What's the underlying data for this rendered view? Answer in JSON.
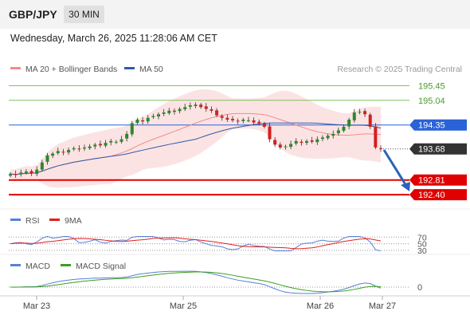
{
  "header": {
    "pair": "GBP/JPY",
    "timeframe": "30 MIN",
    "datetime": "Wednesday, March 26, 2025 11:28:06 AM CET"
  },
  "legend": {
    "ma20_label": "MA 20 + Bollinger Bands",
    "ma50_label": "MA 50",
    "attribution": "Research © 2025 Trading Central",
    "ma20_color": "#f48a8a",
    "ma50_color": "#2f5aa6"
  },
  "rsi_legend": {
    "rsi_label": "RSI",
    "ma_label": "9MA",
    "rsi_color": "#5a7fd6",
    "ma_color": "#e02020"
  },
  "macd_legend": {
    "macd_label": "MACD",
    "signal_label": "MACD Signal",
    "macd_color": "#5a7fd6",
    "signal_color": "#3aa020"
  },
  "chart_data": {
    "type": "candlestick",
    "price_axis": {
      "ylim": [
        192.0,
        195.75
      ]
    },
    "x_tick_labels": [
      "Mar 23",
      "Mar 25",
      "Mar 26",
      "Mar 27"
    ],
    "levels": [
      {
        "value": 195.45,
        "label": "195.45",
        "kind": "resistance",
        "color": "#7cc35a"
      },
      {
        "value": 195.04,
        "label": "195.04",
        "kind": "resistance",
        "color": "#7cc35a"
      },
      {
        "value": 194.35,
        "label": "194.35",
        "kind": "pivot",
        "color": "#2a62d8"
      },
      {
        "value": 193.68,
        "label": "193.68",
        "kind": "last-price",
        "color": "#333333"
      },
      {
        "value": 192.81,
        "label": "192.81",
        "kind": "support",
        "color": "#e00000"
      },
      {
        "value": 192.4,
        "label": "192.40",
        "kind": "support",
        "color": "#e00000"
      }
    ],
    "close_series": [
      192.98,
      192.95,
      193.02,
      193.05,
      193.0,
      193.1,
      193.3,
      193.5,
      193.55,
      193.62,
      193.58,
      193.65,
      193.7,
      193.68,
      193.72,
      193.75,
      193.8,
      193.78,
      193.85,
      193.9,
      193.88,
      193.95,
      194.1,
      194.4,
      194.5,
      194.45,
      194.55,
      194.6,
      194.65,
      194.7,
      194.75,
      194.72,
      194.8,
      194.85,
      194.9,
      194.92,
      194.85,
      194.8,
      194.75,
      194.62,
      194.55,
      194.5,
      194.48,
      194.45,
      194.5,
      194.48,
      194.42,
      194.4,
      194.3,
      193.95,
      193.8,
      193.72,
      193.75,
      193.82,
      193.9,
      193.85,
      193.9,
      193.88,
      193.95,
      194.0,
      194.05,
      194.1,
      194.2,
      194.3,
      194.5,
      194.7,
      194.72,
      194.65,
      194.3,
      193.72,
      193.68
    ],
    "rsi": {
      "levels": [
        70,
        50,
        30
      ]
    },
    "macd": {
      "zero_label": "0"
    },
    "forecast_arrow": {
      "from": 193.68,
      "to": 192.4
    }
  }
}
